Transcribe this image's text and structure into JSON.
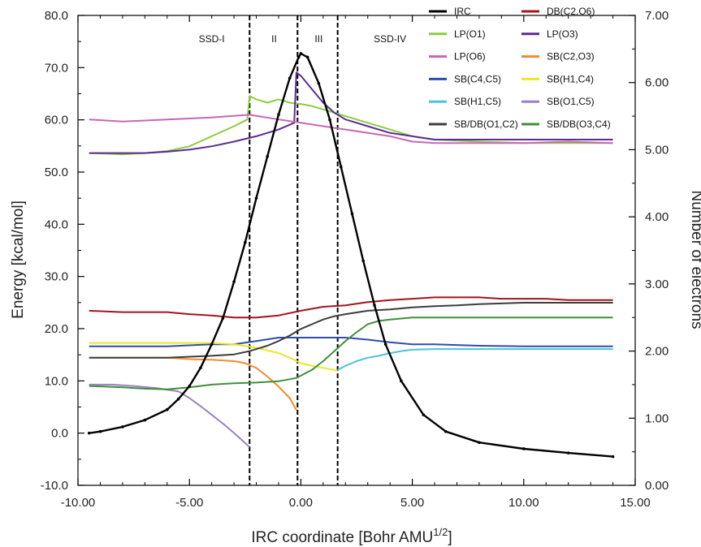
{
  "chart_data": {
    "type": "line",
    "title": "",
    "xlabel": "IRC coordinate [Bohr AMU",
    "xlabel_superscript": "1/2",
    "xlabel_suffix": "]",
    "ylabel_left": "Energy [kcal/mol]",
    "ylabel_right": "Number of electrons",
    "xlim": [
      -10,
      15
    ],
    "ylim_left": [
      -10,
      80
    ],
    "ylim_right": [
      0,
      7
    ],
    "xticks": [
      "-10.00",
      "-5.00",
      "0.00",
      "5.00",
      "10.00",
      "15.00"
    ],
    "yticks_left": [
      "-10.0",
      "0.0",
      "10.0",
      "20.0",
      "30.0",
      "40.0",
      "50.0",
      "60.0",
      "70.0",
      "80.0"
    ],
    "yticks_right": [
      "0.00",
      "1.00",
      "2.00",
      "3.00",
      "4.00",
      "5.00",
      "6.00",
      "7.00"
    ],
    "regions": [
      {
        "label": "SSD-I",
        "x_center": -4.0
      },
      {
        "label": "II",
        "x_center": -1.2
      },
      {
        "label": "III",
        "x_center": 0.8
      },
      {
        "label": "SSD-IV",
        "x_center": 4.0
      }
    ],
    "boundaries": [
      -2.3,
      -0.15,
      1.65
    ],
    "legend_position": "top-right",
    "series": [
      {
        "name": "IRC",
        "axis": "left",
        "color": "#000000",
        "x": [
          -9.5,
          -9,
          -8,
          -7,
          -6,
          -5.5,
          -5,
          -4.5,
          -4,
          -3.5,
          -3,
          -2.5,
          -2,
          -1.5,
          -1,
          -0.5,
          -0.1,
          0,
          0.3,
          0.8,
          1.3,
          1.8,
          2.3,
          2.8,
          3.3,
          3.8,
          4.5,
          5.5,
          6.5,
          8,
          10,
          12,
          14
        ],
        "y": [
          0,
          0.3,
          1.2,
          2.5,
          4.5,
          6.5,
          9,
          12.5,
          17,
          22,
          29,
          36.5,
          45,
          53,
          61,
          68,
          72,
          72.7,
          72,
          67,
          60,
          51,
          42,
          33,
          24.5,
          17,
          10,
          3.5,
          0.3,
          -1.8,
          -3,
          -3.8,
          -4.5
        ]
      },
      {
        "name": "DB(C2,O6)",
        "axis": "right",
        "color": "#a3141c",
        "x": [
          -9.5,
          -8,
          -6,
          -5,
          -4,
          -3,
          -2,
          -1,
          0,
          1,
          2,
          3,
          4,
          5,
          6,
          7,
          8,
          9,
          10,
          11,
          12,
          13,
          14
        ],
        "y": [
          2.6,
          2.58,
          2.58,
          2.55,
          2.53,
          2.5,
          2.5,
          2.53,
          2.6,
          2.66,
          2.68,
          2.73,
          2.76,
          2.78,
          2.8,
          2.8,
          2.8,
          2.78,
          2.78,
          2.78,
          2.76,
          2.76,
          2.76
        ]
      },
      {
        "name": "LP(O1)",
        "axis": "right",
        "color": "#8ecb3f",
        "x": [
          -9.5,
          -8,
          -7,
          -6,
          -5,
          -4,
          -3,
          -2.4,
          -2.3,
          -2,
          -1.5,
          -1,
          -0.5,
          0,
          0.5,
          1,
          2,
          3,
          4,
          5,
          6,
          8,
          10,
          12,
          14
        ],
        "y": [
          4.95,
          4.93,
          4.95,
          4.98,
          5.05,
          5.2,
          5.35,
          5.45,
          5.8,
          5.75,
          5.7,
          5.75,
          5.7,
          5.68,
          5.65,
          5.6,
          5.5,
          5.4,
          5.3,
          5.2,
          5.15,
          5.12,
          5.1,
          5.1,
          5.1
        ]
      },
      {
        "name": "LP(O3)",
        "axis": "right",
        "color": "#5a2d91",
        "x": [
          -9.5,
          -8,
          -7,
          -6,
          -5,
          -4,
          -3,
          -2,
          -1,
          -0.3,
          -0.2,
          0,
          0.5,
          1,
          1.5,
          2,
          3,
          4,
          5,
          6,
          8,
          10,
          12,
          14
        ],
        "y": [
          4.95,
          4.95,
          4.95,
          4.97,
          5.0,
          5.05,
          5.12,
          5.2,
          5.3,
          5.4,
          6.15,
          6.1,
          5.9,
          5.7,
          5.55,
          5.45,
          5.35,
          5.25,
          5.2,
          5.15,
          5.15,
          5.15,
          5.15,
          5.15
        ]
      },
      {
        "name": "LP(O6)",
        "axis": "right",
        "color": "#c766b8",
        "x": [
          -9.5,
          -8,
          -6,
          -4,
          -2.3,
          -1,
          0,
          1,
          2,
          3,
          4,
          5,
          6,
          8,
          10,
          12,
          14
        ],
        "y": [
          5.45,
          5.42,
          5.45,
          5.48,
          5.52,
          5.45,
          5.4,
          5.35,
          5.3,
          5.25,
          5.2,
          5.12,
          5.1,
          5.1,
          5.1,
          5.12,
          5.1
        ]
      },
      {
        "name": "SB(C2,O3)",
        "axis": "right",
        "color": "#f28b30",
        "x": [
          -9.5,
          -8,
          -6,
          -5,
          -4,
          -3,
          -2.5,
          -2,
          -1.5,
          -1,
          -0.5,
          -0.2
        ],
        "y": [
          1.9,
          1.9,
          1.9,
          1.88,
          1.87,
          1.85,
          1.82,
          1.75,
          1.62,
          1.47,
          1.3,
          1.12
        ]
      },
      {
        "name": "SB(C4,C5)",
        "axis": "right",
        "color": "#2f4ea8",
        "x": [
          -9.5,
          -8,
          -6,
          -4,
          -3,
          -2,
          -1,
          0,
          1,
          2,
          3,
          4,
          5,
          6,
          8,
          10,
          12,
          14
        ],
        "y": [
          2.07,
          2.07,
          2.07,
          2.1,
          2.1,
          2.15,
          2.2,
          2.2,
          2.2,
          2.2,
          2.17,
          2.13,
          2.1,
          2.1,
          2.08,
          2.07,
          2.07,
          2.07
        ]
      },
      {
        "name": "SB(H1,C4)",
        "axis": "right",
        "color": "#ede62a",
        "x": [
          -9.5,
          -8,
          -6,
          -5,
          -4,
          -3,
          -2,
          -1,
          -0.5,
          0,
          0.5,
          1,
          1.5,
          1.65
        ],
        "y": [
          2.12,
          2.12,
          2.12,
          2.12,
          2.12,
          2.1,
          2.05,
          1.97,
          1.9,
          1.82,
          1.78,
          1.75,
          1.72,
          1.7
        ]
      },
      {
        "name": "SB(H1,C5)",
        "axis": "right",
        "color": "#4cc3d9",
        "x": [
          1.65,
          2,
          2.5,
          3,
          3.5,
          4,
          4.5,
          5,
          6,
          8,
          10,
          12,
          14
        ],
        "y": [
          1.72,
          1.78,
          1.85,
          1.9,
          1.93,
          1.97,
          2.0,
          2.02,
          2.03,
          2.03,
          2.03,
          2.03,
          2.03
        ]
      },
      {
        "name": "SB(O1,C5)",
        "axis": "right",
        "color": "#9b80c8",
        "x": [
          -9.5,
          -8.5,
          -7.5,
          -6.5,
          -5.5,
          -5,
          -4.5,
          -4,
          -3.5,
          -3,
          -2.5,
          -2.3
        ],
        "y": [
          1.5,
          1.5,
          1.48,
          1.45,
          1.4,
          1.3,
          1.18,
          1.05,
          0.92,
          0.78,
          0.63,
          0.57
        ]
      },
      {
        "name": "SB/DB(O1,C2)",
        "axis": "right",
        "color": "#3d3d3d",
        "x": [
          -9.5,
          -8,
          -6,
          -4,
          -3,
          -2.3,
          -1.5,
          -1,
          -0.5,
          0,
          0.5,
          1,
          1.5,
          2,
          3,
          4,
          5,
          6,
          7,
          8,
          10,
          12,
          14
        ],
        "y": [
          1.9,
          1.9,
          1.9,
          1.93,
          1.95,
          2.0,
          2.08,
          2.15,
          2.23,
          2.33,
          2.4,
          2.47,
          2.52,
          2.55,
          2.6,
          2.62,
          2.65,
          2.67,
          2.68,
          2.7,
          2.72,
          2.72,
          2.72
        ]
      },
      {
        "name": "SB/DB(O3,C4)",
        "axis": "right",
        "color": "#3f8f3a",
        "x": [
          -9.5,
          -8,
          -7,
          -6,
          -5,
          -4,
          -3,
          -2,
          -1,
          -0.2,
          0.5,
          1,
          1.5,
          2,
          2.5,
          3,
          3.5,
          4,
          5,
          6,
          8,
          10,
          12,
          14
        ],
        "y": [
          1.48,
          1.46,
          1.44,
          1.43,
          1.46,
          1.5,
          1.52,
          1.53,
          1.55,
          1.6,
          1.72,
          1.85,
          2.0,
          2.15,
          2.28,
          2.4,
          2.45,
          2.47,
          2.5,
          2.5,
          2.5,
          2.5,
          2.5,
          2.5
        ]
      }
    ]
  }
}
